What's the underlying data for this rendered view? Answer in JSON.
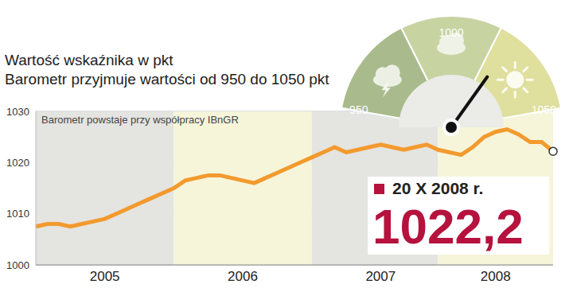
{
  "chart_data": {
    "type": "line",
    "title": "Wartość  wskaźnika w pkt",
    "subtitle": "Barometr przyjmuje wartości od 950 do 1050 pkt",
    "note": "Barometr powstaje przy współpracy IBnGR",
    "categories": [
      null,
      null,
      null,
      null,
      null,
      null,
      "2005",
      null,
      null,
      null,
      null,
      null,
      null,
      null,
      null,
      null,
      null,
      null,
      "2006",
      null,
      null,
      null,
      null,
      null,
      null,
      null,
      null,
      null,
      null,
      null,
      "2007",
      null,
      null,
      null,
      null,
      null,
      null,
      null,
      null,
      null,
      "2008",
      null,
      null,
      null,
      null,
      null
    ],
    "values": [
      1007.5,
      1008,
      1008,
      1007.5,
      1008,
      1008.5,
      1009,
      1010,
      1011,
      1012,
      1013,
      1014,
      1015,
      1016.5,
      1017,
      1017.5,
      1017.5,
      1017,
      1016.5,
      1016,
      1017,
      1018,
      1019,
      1020,
      1021,
      1022,
      1023,
      1022,
      1022.5,
      1023,
      1023.5,
      1023,
      1022.5,
      1023,
      1023.5,
      1022.5,
      1022,
      1021.5,
      1023,
      1025,
      1026,
      1026.5,
      1025.5,
      1024,
      1024,
      1022.2
    ],
    "color": "#f39a2e",
    "ylim": [
      1000,
      1030
    ],
    "yticks": [
      1000,
      1010,
      1020,
      1030
    ],
    "grid": true,
    "gauge": {
      "min": 950,
      "max": 1050,
      "ticks": [
        950,
        1000,
        1050
      ],
      "value": 1022.2,
      "value_label": "1022,2",
      "date_label": "20 X 2008 r."
    }
  }
}
